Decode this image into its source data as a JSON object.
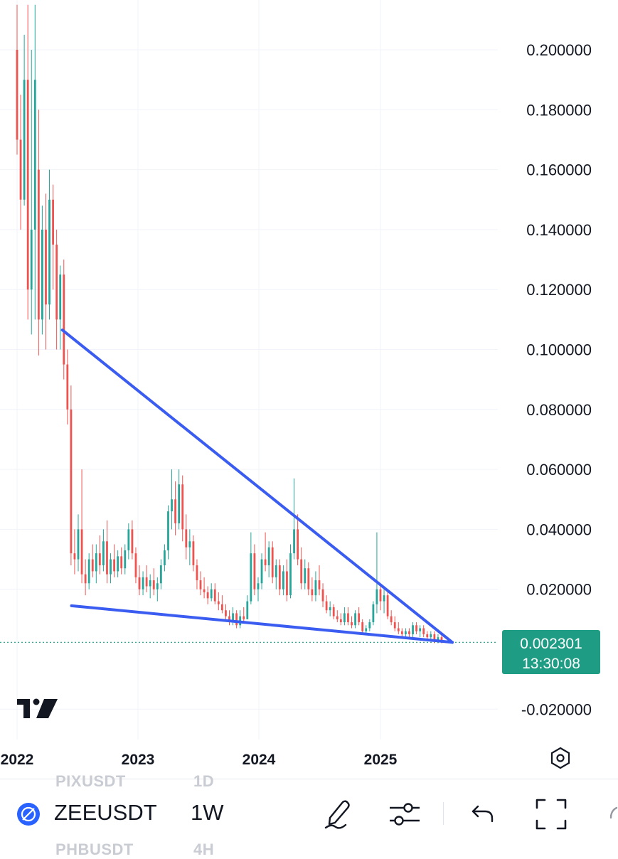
{
  "chart_data": {
    "type": "candlestick",
    "symbol": "ZEEUSDT",
    "interval": "1W",
    "y_ticks": [
      "0.200000",
      "0.180000",
      "0.160000",
      "0.140000",
      "0.120000",
      "0.100000",
      "0.080000",
      "0.060000",
      "0.040000",
      "0.020000",
      "-0.020000"
    ],
    "ylim": [
      -0.028,
      0.215
    ],
    "x_ticks": [
      "2022",
      "2023",
      "2024",
      "2025"
    ],
    "last_price": "0.002301",
    "countdown": "13:30:08",
    "colors": {
      "up": "#26a69a",
      "down": "#ef5350",
      "trendline": "#3a5cf0",
      "badge": "#1f9c84",
      "grid": "#f0f3fa"
    },
    "candles": [
      [
        0.2,
        0.215,
        0.165,
        0.17
      ],
      [
        0.17,
        0.185,
        0.14,
        0.15
      ],
      [
        0.15,
        0.205,
        0.148,
        0.19
      ],
      [
        0.19,
        0.215,
        0.11,
        0.12
      ],
      [
        0.12,
        0.2,
        0.105,
        0.14
      ],
      [
        0.14,
        0.215,
        0.11,
        0.19
      ],
      [
        0.16,
        0.18,
        0.098,
        0.11
      ],
      [
        0.11,
        0.148,
        0.105,
        0.14
      ],
      [
        0.14,
        0.152,
        0.1,
        0.115
      ],
      [
        0.115,
        0.16,
        0.11,
        0.15
      ],
      [
        0.15,
        0.155,
        0.12,
        0.135
      ],
      [
        0.135,
        0.14,
        0.1,
        0.11
      ],
      [
        0.11,
        0.128,
        0.1,
        0.125
      ],
      [
        0.125,
        0.13,
        0.09,
        0.095
      ],
      [
        0.095,
        0.1,
        0.075,
        0.08
      ],
      [
        0.08,
        0.088,
        0.028,
        0.032
      ],
      [
        0.032,
        0.04,
        0.025,
        0.03
      ],
      [
        0.03,
        0.045,
        0.026,
        0.04
      ],
      [
        0.04,
        0.06,
        0.022,
        0.025
      ],
      [
        0.025,
        0.03,
        0.018,
        0.022
      ],
      [
        0.022,
        0.032,
        0.02,
        0.03
      ],
      [
        0.03,
        0.035,
        0.024,
        0.026
      ],
      [
        0.026,
        0.035,
        0.022,
        0.032
      ],
      [
        0.032,
        0.038,
        0.025,
        0.028
      ],
      [
        0.028,
        0.04,
        0.026,
        0.036
      ],
      [
        0.036,
        0.043,
        0.022,
        0.025
      ],
      [
        0.025,
        0.032,
        0.022,
        0.03
      ],
      [
        0.03,
        0.035,
        0.024,
        0.026
      ],
      [
        0.026,
        0.033,
        0.024,
        0.031
      ],
      [
        0.031,
        0.034,
        0.025,
        0.027
      ],
      [
        0.027,
        0.035,
        0.025,
        0.033
      ],
      [
        0.033,
        0.042,
        0.03,
        0.04
      ],
      [
        0.04,
        0.043,
        0.03,
        0.032
      ],
      [
        0.032,
        0.034,
        0.022,
        0.024
      ],
      [
        0.024,
        0.028,
        0.018,
        0.02
      ],
      [
        0.02,
        0.026,
        0.018,
        0.024
      ],
      [
        0.024,
        0.028,
        0.019,
        0.021
      ],
      [
        0.021,
        0.025,
        0.017,
        0.023
      ],
      [
        0.023,
        0.027,
        0.018,
        0.02
      ],
      [
        0.02,
        0.024,
        0.016,
        0.022
      ],
      [
        0.022,
        0.03,
        0.02,
        0.028
      ],
      [
        0.028,
        0.035,
        0.026,
        0.033
      ],
      [
        0.033,
        0.048,
        0.03,
        0.046
      ],
      [
        0.046,
        0.06,
        0.04,
        0.05
      ],
      [
        0.05,
        0.056,
        0.038,
        0.042
      ],
      [
        0.042,
        0.06,
        0.04,
        0.055
      ],
      [
        0.055,
        0.058,
        0.036,
        0.04
      ],
      [
        0.04,
        0.045,
        0.03,
        0.034
      ],
      [
        0.034,
        0.04,
        0.028,
        0.036
      ],
      [
        0.036,
        0.038,
        0.026,
        0.028
      ],
      [
        0.028,
        0.03,
        0.02,
        0.023
      ],
      [
        0.023,
        0.026,
        0.018,
        0.02
      ],
      [
        0.02,
        0.024,
        0.017,
        0.019
      ],
      [
        0.019,
        0.021,
        0.015,
        0.017
      ],
      [
        0.017,
        0.022,
        0.016,
        0.02
      ],
      [
        0.02,
        0.022,
        0.015,
        0.016
      ],
      [
        0.016,
        0.019,
        0.013,
        0.015
      ],
      [
        0.015,
        0.018,
        0.012,
        0.013
      ],
      [
        0.013,
        0.015,
        0.01,
        0.011
      ],
      [
        0.011,
        0.013,
        0.008,
        0.009
      ],
      [
        0.009,
        0.014,
        0.008,
        0.012
      ],
      [
        0.012,
        0.013,
        0.007,
        0.008
      ],
      [
        0.008,
        0.013,
        0.007,
        0.011
      ],
      [
        0.011,
        0.014,
        0.009,
        0.01
      ],
      [
        0.01,
        0.018,
        0.01,
        0.016
      ],
      [
        0.016,
        0.039,
        0.015,
        0.032
      ],
      [
        0.032,
        0.035,
        0.018,
        0.02
      ],
      [
        0.02,
        0.024,
        0.016,
        0.022
      ],
      [
        0.022,
        0.032,
        0.02,
        0.03
      ],
      [
        0.03,
        0.039,
        0.026,
        0.028
      ],
      [
        0.028,
        0.036,
        0.024,
        0.034
      ],
      [
        0.034,
        0.036,
        0.022,
        0.024
      ],
      [
        0.024,
        0.03,
        0.02,
        0.028
      ],
      [
        0.028,
        0.03,
        0.018,
        0.02
      ],
      [
        0.02,
        0.028,
        0.018,
        0.026
      ],
      [
        0.026,
        0.03,
        0.016,
        0.018
      ],
      [
        0.018,
        0.035,
        0.017,
        0.032
      ],
      [
        0.032,
        0.057,
        0.03,
        0.04
      ],
      [
        0.04,
        0.045,
        0.028,
        0.03
      ],
      [
        0.03,
        0.034,
        0.02,
        0.022
      ],
      [
        0.022,
        0.03,
        0.02,
        0.027
      ],
      [
        0.027,
        0.029,
        0.018,
        0.02
      ],
      [
        0.02,
        0.024,
        0.016,
        0.018
      ],
      [
        0.018,
        0.026,
        0.016,
        0.023
      ],
      [
        0.023,
        0.028,
        0.018,
        0.02
      ],
      [
        0.02,
        0.022,
        0.014,
        0.016
      ],
      [
        0.016,
        0.018,
        0.012,
        0.013
      ],
      [
        0.013,
        0.016,
        0.011,
        0.014
      ],
      [
        0.014,
        0.015,
        0.01,
        0.011
      ],
      [
        0.011,
        0.013,
        0.009,
        0.01
      ],
      [
        0.01,
        0.012,
        0.008,
        0.009
      ],
      [
        0.009,
        0.014,
        0.008,
        0.012
      ],
      [
        0.012,
        0.014,
        0.008,
        0.009
      ],
      [
        0.009,
        0.011,
        0.007,
        0.008
      ],
      [
        0.008,
        0.013,
        0.007,
        0.012
      ],
      [
        0.012,
        0.014,
        0.008,
        0.009
      ],
      [
        0.009,
        0.01,
        0.005,
        0.006
      ],
      [
        0.006,
        0.008,
        0.005,
        0.007
      ],
      [
        0.007,
        0.01,
        0.006,
        0.009
      ],
      [
        0.009,
        0.016,
        0.008,
        0.015
      ],
      [
        0.015,
        0.039,
        0.012,
        0.02
      ],
      [
        0.02,
        0.022,
        0.013,
        0.016
      ],
      [
        0.016,
        0.02,
        0.012,
        0.018
      ],
      [
        0.018,
        0.019,
        0.01,
        0.011
      ],
      [
        0.011,
        0.013,
        0.008,
        0.009
      ],
      [
        0.009,
        0.011,
        0.006,
        0.007
      ],
      [
        0.007,
        0.009,
        0.005,
        0.006
      ],
      [
        0.006,
        0.007,
        0.004,
        0.005
      ],
      [
        0.005,
        0.007,
        0.004,
        0.006
      ],
      [
        0.006,
        0.007,
        0.004,
        0.005
      ],
      [
        0.005,
        0.009,
        0.004,
        0.008
      ],
      [
        0.008,
        0.009,
        0.005,
        0.006
      ],
      [
        0.006,
        0.008,
        0.004,
        0.007
      ],
      [
        0.007,
        0.008,
        0.004,
        0.005
      ],
      [
        0.005,
        0.006,
        0.003,
        0.004
      ],
      [
        0.004,
        0.006,
        0.003,
        0.005
      ],
      [
        0.005,
        0.006,
        0.002,
        0.003
      ],
      [
        0.003,
        0.005,
        0.002,
        0.004
      ],
      [
        0.004,
        0.005,
        0.002,
        0.0023
      ]
    ],
    "trendlines": [
      {
        "name": "resistance",
        "from": [
          0.104,
          0.1065
        ],
        "to": [
          1.0,
          0.0023
        ]
      },
      {
        "name": "support",
        "from": [
          0.125,
          0.0145
        ],
        "to": [
          1.0,
          0.0023
        ]
      }
    ]
  },
  "toolbar": {
    "symbol": "ZEEUSDT",
    "interval": "1W",
    "ghost_top_symbol": "PIXUSDT",
    "ghost_top_interval": "1D",
    "ghost_bottom_symbol": "PHBUSDT",
    "ghost_bottom_interval": "4H",
    "icons": [
      "symbol-logo-icon",
      "pencil-draw-icon",
      "indicator-settings-icon",
      "undo-icon",
      "fullscreen-icon",
      "more-icon"
    ]
  }
}
